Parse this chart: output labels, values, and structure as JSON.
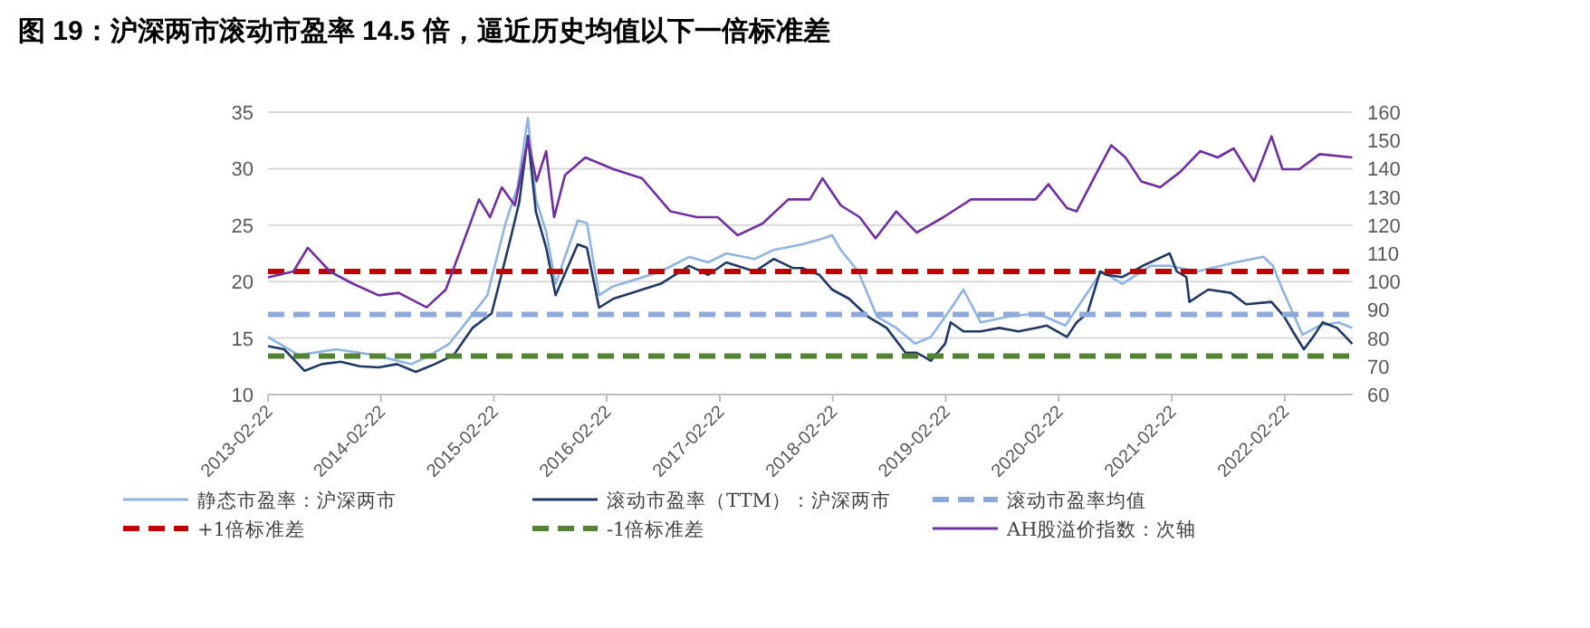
{
  "chart_data": {
    "type": "line",
    "title": "图 19：沪深两市滚动市盈率 14.5 倍，逼近历史均值以下一倍标准差",
    "xlim": [
      "2013-02-22",
      "2022-09-30"
    ],
    "xticks": [
      "2013-02-22",
      "2014-02-22",
      "2015-02-22",
      "2016-02-22",
      "2017-02-22",
      "2018-02-22",
      "2019-02-22",
      "2020-02-22",
      "2021-02-22",
      "2022-02-22"
    ],
    "ylim": [
      10,
      35
    ],
    "yticks": [
      10,
      15,
      20,
      25,
      30,
      35
    ],
    "y2lim": [
      60,
      160
    ],
    "y2ticks": [
      60,
      70,
      80,
      90,
      100,
      110,
      120,
      130,
      140,
      150,
      160
    ],
    "grid": "y",
    "legend": "bottom",
    "series": [
      {
        "name": "静态市盈率：沪深两市",
        "color": "#8fb4e3",
        "x": [
          "2013-02-22",
          "2013-06-01",
          "2013-10-01",
          "2014-02-01",
          "2014-06-01",
          "2014-08-01",
          "2014-10-01",
          "2014-12-01",
          "2015-02-01",
          "2015-04-01",
          "2015-05-10",
          "2015-06-12",
          "2015-07-08",
          "2015-08-10",
          "2015-09-10",
          "2015-11-20",
          "2015-12-20",
          "2016-01-28",
          "2016-03-15",
          "2016-05-15",
          "2016-08-15",
          "2016-11-15",
          "2017-01-15",
          "2017-03-15",
          "2017-06-15",
          "2017-08-15",
          "2017-11-15",
          "2018-01-20",
          "2018-02-20",
          "2018-03-20",
          "2018-05-15",
          "2018-07-15",
          "2018-09-15",
          "2018-11-15",
          "2019-01-05",
          "2019-03-20",
          "2019-04-20",
          "2019-06-15",
          "2019-09-15",
          "2019-12-15",
          "2020-03-15",
          "2020-07-10",
          "2020-09-15",
          "2020-12-15",
          "2021-02-15",
          "2021-05-15",
          "2021-09-15",
          "2021-12-15",
          "2022-01-15",
          "2022-02-15",
          "2022-04-20",
          "2022-06-15",
          "2022-08-15",
          "2022-09-28"
        ],
        "values": [
          15.1,
          13.5,
          14.0,
          13.5,
          12.7,
          13.5,
          14.5,
          16.6,
          18.8,
          25.2,
          28.4,
          34.5,
          27.3,
          24.4,
          19.8,
          25.4,
          25.2,
          18.8,
          19.6,
          20.1,
          20.9,
          22.2,
          21.7,
          22.5,
          22.0,
          22.8,
          23.3,
          23.8,
          24.1,
          22.8,
          20.9,
          16.9,
          15.9,
          14.5,
          15.1,
          18.0,
          19.3,
          16.4,
          16.9,
          17.2,
          16.1,
          20.9,
          19.8,
          21.4,
          21.4,
          20.9,
          21.7,
          22.2,
          21.4,
          19.3,
          15.3,
          16.1,
          16.4,
          15.9
        ]
      },
      {
        "name": "滚动市盈率（TTM）：沪深两市",
        "color": "#1f3864",
        "x": [
          "2013-02-22",
          "2013-04-15",
          "2013-06-20",
          "2013-08-15",
          "2013-10-15",
          "2013-12-15",
          "2014-02-15",
          "2014-04-15",
          "2014-06-15",
          "2014-08-15",
          "2014-10-15",
          "2014-12-15",
          "2015-02-15",
          "2015-04-15",
          "2015-05-15",
          "2015-06-12",
          "2015-07-08",
          "2015-08-10",
          "2015-09-10",
          "2015-11-20",
          "2015-12-20",
          "2016-01-28",
          "2016-03-15",
          "2016-05-15",
          "2016-08-15",
          "2016-11-15",
          "2017-01-15",
          "2017-03-15",
          "2017-06-15",
          "2017-08-15",
          "2017-10-15",
          "2017-11-15",
          "2018-01-10",
          "2018-02-20",
          "2018-04-15",
          "2018-06-15",
          "2018-08-15",
          "2018-10-15",
          "2018-11-20",
          "2019-01-05",
          "2019-02-20",
          "2019-03-10",
          "2019-04-20",
          "2019-06-15",
          "2019-08-15",
          "2019-10-15",
          "2019-12-10",
          "2020-01-15",
          "2020-03-20",
          "2020-04-20",
          "2020-05-25",
          "2020-07-05",
          "2020-07-25",
          "2020-09-15",
          "2020-11-20",
          "2021-02-15",
          "2021-03-10",
          "2021-04-10",
          "2021-04-20",
          "2021-06-20",
          "2021-09-01",
          "2021-10-20",
          "2022-01-10",
          "2022-02-20",
          "2022-03-20",
          "2022-04-25",
          "2022-05-25",
          "2022-06-25",
          "2022-08-10",
          "2022-09-28"
        ],
        "values": [
          14.3,
          14.0,
          12.1,
          12.7,
          12.9,
          12.5,
          12.4,
          12.7,
          12.0,
          12.7,
          13.5,
          15.9,
          17.2,
          23.6,
          27.0,
          32.9,
          26.2,
          23.0,
          18.8,
          23.3,
          23.0,
          17.7,
          18.5,
          19.0,
          19.8,
          21.4,
          20.6,
          21.7,
          20.9,
          22.0,
          21.2,
          21.2,
          20.6,
          19.3,
          18.5,
          16.9,
          15.9,
          13.7,
          13.7,
          13.0,
          14.5,
          16.4,
          15.6,
          15.6,
          15.9,
          15.6,
          15.9,
          16.1,
          15.1,
          16.4,
          17.2,
          20.9,
          20.6,
          20.4,
          21.4,
          22.5,
          20.9,
          20.4,
          18.2,
          19.3,
          19.0,
          18.0,
          18.2,
          16.9,
          15.6,
          14.0,
          15.1,
          16.4,
          15.9,
          14.5
        ]
      },
      {
        "name": "滚动市盈率均值",
        "color": "#8eaadb",
        "line_style": "dashed",
        "x": [
          "2013-02-22",
          "2022-09-30"
        ],
        "values": [
          17.1,
          17.1
        ]
      },
      {
        "name": "+1倍标准差",
        "color": "#c00000",
        "line_style": "dashed",
        "x": [
          "2013-02-22",
          "2022-09-30"
        ],
        "values": [
          20.9,
          20.9
        ]
      },
      {
        "name": "-1倍标准差",
        "color": "#548235",
        "line_style": "dashed",
        "x": [
          "2013-02-22",
          "2022-09-30"
        ],
        "values": [
          13.4,
          13.4
        ]
      },
      {
        "name": "AH股溢价指数：次轴",
        "color": "#7030a0",
        "axis": "y2",
        "x": [
          "2013-02-22",
          "2013-05-15",
          "2013-07-01",
          "2013-09-10",
          "2013-11-20",
          "2014-02-15",
          "2014-04-20",
          "2014-07-20",
          "2014-09-20",
          "2014-12-01",
          "2015-01-05",
          "2015-02-10",
          "2015-03-20",
          "2015-05-01",
          "2015-06-12",
          "2015-07-10",
          "2015-08-10",
          "2015-09-05",
          "2015-10-10",
          "2015-12-15",
          "2016-03-15",
          "2016-06-15",
          "2016-09-15",
          "2016-12-10",
          "2017-02-15",
          "2017-04-20",
          "2017-07-10",
          "2017-10-01",
          "2017-12-10",
          "2018-01-20",
          "2018-03-20",
          "2018-05-20",
          "2018-07-10",
          "2018-09-15",
          "2018-11-20",
          "2019-02-15",
          "2019-05-15",
          "2019-09-10",
          "2019-12-10",
          "2020-01-20",
          "2020-03-20",
          "2020-04-20",
          "2020-06-20",
          "2020-08-10",
          "2020-09-25",
          "2020-11-15",
          "2021-01-15",
          "2021-03-20",
          "2021-05-25",
          "2021-07-20",
          "2021-09-10",
          "2021-11-15",
          "2022-01-10",
          "2022-02-15",
          "2022-04-10",
          "2022-06-15",
          "2022-09-28"
        ],
        "values": [
          101.5,
          103.6,
          112,
          103.6,
          99.4,
          95.1,
          96.0,
          90.9,
          97.2,
          118.5,
          129.1,
          122.8,
          133.4,
          127,
          150.4,
          135.5,
          146.2,
          122.8,
          137.7,
          144,
          139.8,
          136.6,
          124.9,
          122.8,
          122.8,
          116.4,
          120.6,
          129.1,
          129.1,
          136.6,
          127,
          122.8,
          115.3,
          124.9,
          117.4,
          122.8,
          129.1,
          129.1,
          129.1,
          134.5,
          126,
          124.9,
          137.7,
          148.3,
          144,
          135.5,
          133.4,
          138.7,
          146.2,
          144,
          147.2,
          135.5,
          151.5,
          139.8,
          139.8,
          145.1,
          144
        ]
      }
    ]
  }
}
